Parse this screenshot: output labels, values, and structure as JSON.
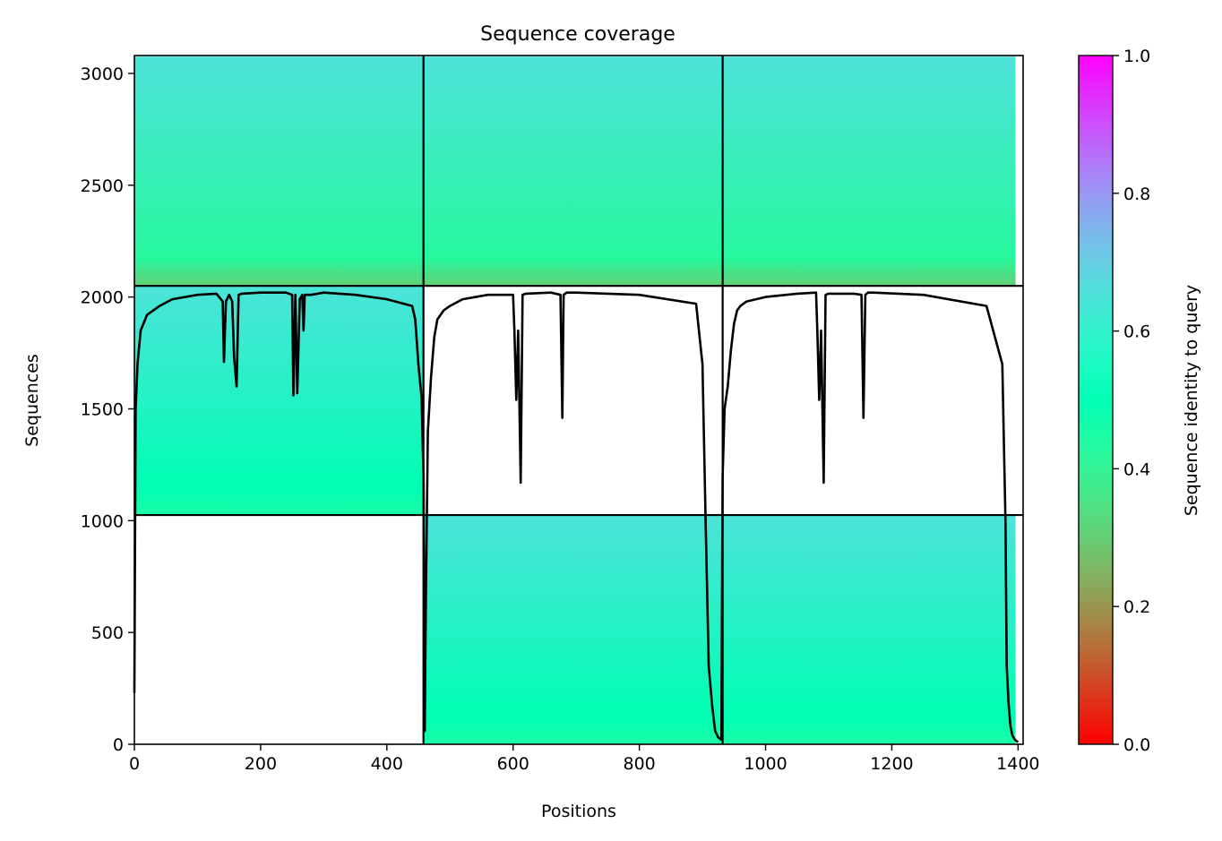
{
  "chart_data": {
    "type": "heatmap",
    "title": "Sequence coverage",
    "xlabel": "Positions",
    "ylabel": "Sequences",
    "xlim": [
      0,
      1408
    ],
    "ylim": [
      0,
      3080
    ],
    "x_ticks": [
      0,
      200,
      400,
      600,
      800,
      1000,
      1200,
      1400
    ],
    "y_ticks": [
      0,
      500,
      1000,
      1500,
      2000,
      2500,
      3000
    ],
    "colorbar": {
      "label": "Sequence identity to query",
      "range": [
        0,
        1
      ],
      "ticks": [
        0.0,
        0.2,
        0.4,
        0.6,
        0.8,
        1.0
      ],
      "tick_labels": [
        "0.0",
        "0.2",
        "0.4",
        "0.6",
        "0.8",
        "1.0"
      ],
      "colormap": "rainbow_r"
    },
    "chain_boundaries_x": [
      458,
      932
    ],
    "block_boundaries_y": [
      1025,
      2050
    ],
    "coverage_blocks": [
      {
        "x": [
          0,
          458
        ],
        "y": [
          2050,
          3075
        ],
        "identity_bottom": 0.3,
        "identity_top": 0.65
      },
      {
        "x": [
          458,
          932
        ],
        "y": [
          2050,
          3075
        ],
        "identity_bottom": 0.3,
        "identity_top": 0.65
      },
      {
        "x": [
          932,
          1396
        ],
        "y": [
          2050,
          3075
        ],
        "identity_bottom": 0.3,
        "identity_top": 0.65
      },
      {
        "x": [
          0,
          458
        ],
        "y": [
          1025,
          2050
        ],
        "identity_bottom": 0.45,
        "identity_top": 0.65
      },
      {
        "x": [
          458,
          932
        ],
        "y": [
          0,
          1025
        ],
        "identity_bottom": 0.45,
        "identity_top": 0.65
      },
      {
        "x": [
          932,
          1396
        ],
        "y": [
          0,
          1025
        ],
        "identity_bottom": 0.45,
        "identity_top": 0.65
      }
    ],
    "coverage_line": {
      "x": [
        0,
        2,
        5,
        10,
        20,
        40,
        60,
        100,
        130,
        140,
        142,
        145,
        150,
        155,
        158,
        162,
        165,
        170,
        200,
        240,
        250,
        252,
        255,
        258,
        262,
        266,
        268,
        270,
        272,
        280,
        300,
        350,
        400,
        440,
        445,
        450,
        455,
        458,
        460,
        462,
        465,
        470,
        475,
        480,
        490,
        500,
        520,
        560,
        600,
        602,
        605,
        608,
        612,
        615,
        620,
        660,
        675,
        678,
        680,
        685,
        700,
        800,
        890,
        900,
        905,
        910,
        915,
        920,
        925,
        930,
        932,
        935,
        940,
        945,
        950,
        955,
        960,
        970,
        1000,
        1050,
        1080,
        1082,
        1085,
        1088,
        1092,
        1095,
        1100,
        1140,
        1152,
        1155,
        1158,
        1162,
        1170,
        1250,
        1350,
        1375,
        1380,
        1382,
        1385,
        1388,
        1391,
        1394,
        1397,
        1400
      ],
      "y": [
        230,
        1500,
        1700,
        1850,
        1920,
        1960,
        1990,
        2010,
        2015,
        1980,
        1710,
        1980,
        2010,
        1980,
        1730,
        1600,
        2010,
        2015,
        2020,
        2020,
        2010,
        1560,
        2010,
        1570,
        1990,
        2010,
        1850,
        2010,
        2010,
        2010,
        2020,
        2010,
        1990,
        1960,
        1900,
        1700,
        1550,
        1200,
        60,
        700,
        1400,
        1640,
        1820,
        1900,
        1940,
        1960,
        1990,
        2010,
        2010,
        1860,
        1540,
        1850,
        1170,
        2010,
        2015,
        2020,
        2010,
        1460,
        2010,
        2020,
        2020,
        2010,
        1970,
        1700,
        1000,
        350,
        180,
        60,
        30,
        20,
        1200,
        1500,
        1600,
        1760,
        1880,
        1940,
        1960,
        1980,
        2000,
        2015,
        2020,
        1850,
        1540,
        1850,
        1170,
        2010,
        2015,
        2015,
        2010,
        1460,
        2010,
        2020,
        2020,
        2010,
        1960,
        1700,
        1000,
        350,
        180,
        80,
        40,
        25,
        15,
        10
      ]
    }
  }
}
